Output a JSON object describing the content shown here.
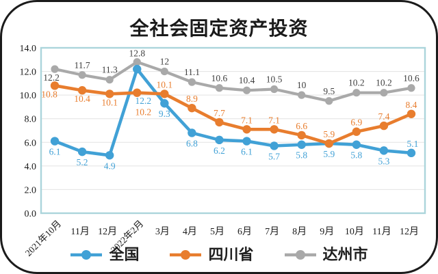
{
  "chart_data": {
    "type": "line",
    "title": "全社会固定资产投资",
    "categories": [
      "2021年10月",
      "11月",
      "12月",
      "2022年2月",
      "3月",
      "4月",
      "5月",
      "6月",
      "7月",
      "8月",
      "9月",
      "10月",
      "11月",
      "12月"
    ],
    "series": [
      {
        "name": "全国",
        "color": "#41A1D6",
        "label_color": "#41A1D6",
        "values": [
          6.1,
          5.2,
          4.9,
          12.2,
          9.3,
          6.8,
          6.2,
          6.1,
          5.7,
          5.8,
          5.9,
          5.8,
          5.3,
          5.1
        ]
      },
      {
        "name": "四川省",
        "color": "#E87D2E",
        "label_color": "#E87D2E",
        "values": [
          10.8,
          10.4,
          10.1,
          10.2,
          10.1,
          8.9,
          7.7,
          7.1,
          7.1,
          6.6,
          5.9,
          6.9,
          7.4,
          8.4
        ]
      },
      {
        "name": "达州市",
        "color": "#A9A9A9",
        "label_color": "#404040",
        "values": [
          12.2,
          11.7,
          11.3,
          12.8,
          12,
          11.1,
          10.6,
          10.4,
          10.5,
          10,
          9.5,
          10.2,
          10.2,
          10.6
        ]
      }
    ],
    "ylim": [
      0,
      14
    ],
    "y_ticks": [
      "0.0",
      "2.0",
      "4.0",
      "6.0",
      "8.0",
      "10.0",
      "12.0",
      "14.0"
    ],
    "grid": "horizontal",
    "legend_position": "bottom",
    "plot_border_color": "#ABD5DB",
    "gridline_color": "#E2E2E2"
  }
}
